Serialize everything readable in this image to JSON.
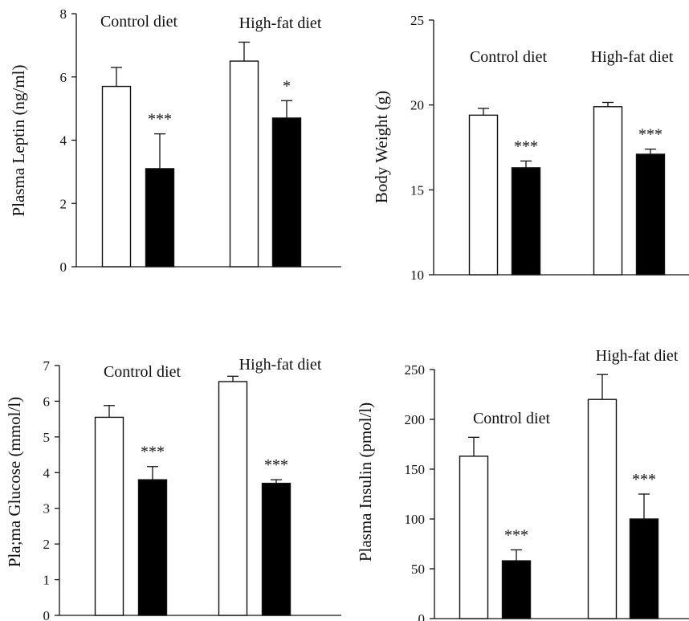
{
  "chart_data": [
    {
      "type": "bar",
      "ylabel": "Plasma Leptin (ng/ml)",
      "ylim": [
        0,
        8
      ],
      "yticks": [
        0,
        2,
        4,
        6,
        8
      ],
      "categories": [
        "Control diet",
        "High-fat diet"
      ],
      "bar_colors": [
        "#ffffff",
        "#000000"
      ],
      "values": [
        [
          5.7,
          3.1
        ],
        [
          6.5,
          4.7
        ]
      ],
      "errors": [
        [
          0.6,
          1.1
        ],
        [
          0.6,
          0.55
        ]
      ],
      "significance": [
        [
          "",
          "***"
        ],
        [
          "",
          "*"
        ]
      ]
    },
    {
      "type": "bar",
      "ylabel": "Body Weight (g)",
      "ylim": [
        10,
        25
      ],
      "yticks": [
        10,
        15,
        20,
        25
      ],
      "categories": [
        "Control diet",
        "High-fat diet"
      ],
      "bar_colors": [
        "#ffffff",
        "#000000"
      ],
      "values": [
        [
          19.4,
          16.3
        ],
        [
          19.9,
          17.1
        ]
      ],
      "errors": [
        [
          0.4,
          0.4
        ],
        [
          0.25,
          0.3
        ]
      ],
      "significance": [
        [
          "",
          "***"
        ],
        [
          "",
          "***"
        ]
      ]
    },
    {
      "type": "bar",
      "ylabel": "Pla;ma Glucose (mmol/l)",
      "ylim": [
        0,
        7
      ],
      "yticks": [
        0,
        1,
        2,
        3,
        4,
        5,
        6,
        7
      ],
      "categories": [
        "Control diet",
        "High-fat diet"
      ],
      "bar_colors": [
        "#ffffff",
        "#000000"
      ],
      "values": [
        [
          5.55,
          3.8
        ],
        [
          6.55,
          3.7
        ]
      ],
      "errors": [
        [
          0.33,
          0.37
        ],
        [
          0.15,
          0.1
        ]
      ],
      "significance": [
        [
          "",
          "***"
        ],
        [
          "",
          "***"
        ]
      ]
    },
    {
      "type": "bar",
      "ylabel": "Plasma Insulin (pmol/l)",
      "ylim": [
        0,
        250
      ],
      "yticks": [
        0,
        50,
        100,
        150,
        200,
        250
      ],
      "categories": [
        "Control diet",
        "High-fat diet"
      ],
      "bar_colors": [
        "#ffffff",
        "#000000"
      ],
      "values": [
        [
          163,
          58
        ],
        [
          220,
          100
        ]
      ],
      "errors": [
        [
          19,
          11
        ],
        [
          25,
          25
        ]
      ],
      "significance": [
        [
          "",
          "***"
        ],
        [
          "",
          "***"
        ]
      ]
    }
  ]
}
